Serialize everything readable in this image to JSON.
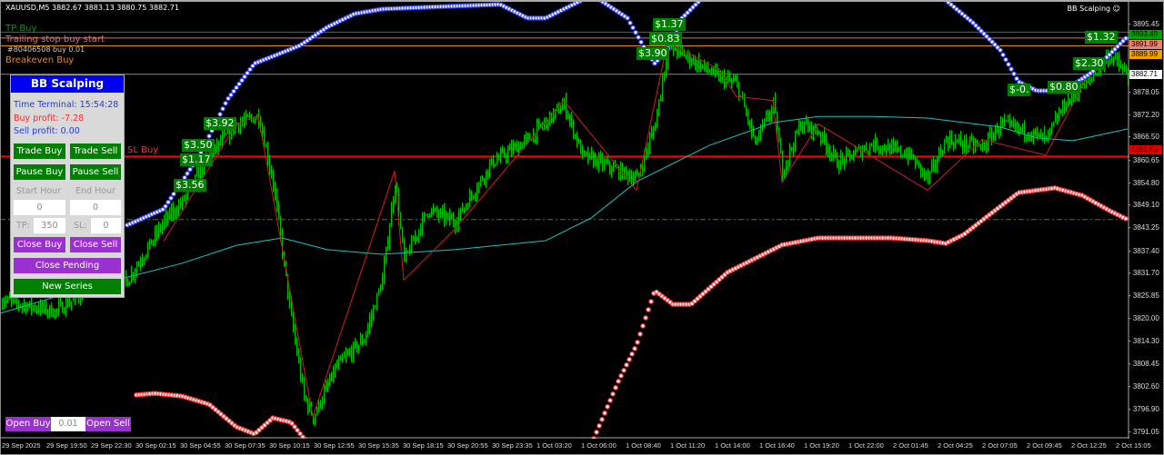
{
  "header": {
    "symbol_info": "XAUUSD,M5  3882.67 3883.13 3880.75 3882.71",
    "indicator_tag": "BB Scalping ☺"
  },
  "chart_labels": {
    "tp_buy": "TP Buy",
    "trailing": "Trailing stop buy start",
    "order": "#80406508 buy 0.01",
    "breakeven": "Breakeven Buy",
    "sl_buy": "SL Buy"
  },
  "colors": {
    "tp": "#00a000",
    "trailing": "#e07060",
    "breakeven": "#e08a20",
    "sl": "#ff0000",
    "candle": "#00c000",
    "ma": "#20c0c0",
    "upper_band": "#3040ff",
    "lower_band": "#ff3030",
    "panel_title": "#0000f0",
    "button_green": "#008000",
    "button_purple": "#9b30d0"
  },
  "panel": {
    "title": "BB Scalping",
    "time_label": "Time Terminal: 15:54:28",
    "buy_profit": "Buy profit: -7.28",
    "sell_profit": "Sell profit: 0.00",
    "trade_buy": "Trade Buy",
    "trade_sell": "Trade Sell",
    "pause_buy": "Pause Buy",
    "pause_sell": "Pause Sell",
    "start_hour_label": "Start Hour",
    "end_hour_label": "End Hour",
    "start_hour": "0",
    "end_hour": "0",
    "tp_label": "TP:",
    "tp_value": "350",
    "sl_label": "SL:",
    "sl_value": "0",
    "close_buy": "Close Buy",
    "close_sell": "Close Sell",
    "close_pending": "Close Pending",
    "new_series": "New Series"
  },
  "bottom": {
    "open_buy": "Open Buy",
    "lot": "0.01",
    "open_sell": "Open Sell"
  },
  "price_axis": [
    "3895.45",
    "3878.05",
    "3872.20",
    "3866.50",
    "3860.65",
    "3854.80",
    "3849.10",
    "3843.25",
    "3837.40",
    "3831.70",
    "3825.85",
    "3820.00",
    "3814.30",
    "3808.45",
    "3802.60",
    "3796.90",
    "3791.05"
  ],
  "price_tags": {
    "tp": "3893.49",
    "trailing": "3891.99",
    "breakeven": "3889.99",
    "current": "3882.71",
    "sl": "3861.65"
  },
  "time_axis": [
    "29 Sep 2025",
    "29 Sep 19:50",
    "29 Sep 22:30",
    "30 Sep 02:15",
    "30 Sep 04:55",
    "30 Sep 07:35",
    "30 Sep 10:15",
    "30 Sep 12:55",
    "30 Sep 15:35",
    "30 Sep 18:15",
    "30 Sep 20:55",
    "30 Sep 23:35",
    "1 Oct 03:20",
    "1 Oct 06:00",
    "1 Oct 08:40",
    "1 Oct 11:20",
    "1 Oct 14:00",
    "1 Oct 16:40",
    "1 Oct 19:20",
    "1 Oct 22:00",
    "2 Oct 01:45",
    "2 Oct 04:25",
    "2 Oct 07:05",
    "2 Oct 09:45",
    "2 Oct 12:25",
    "2 Oct 15:05"
  ],
  "profit_labels": [
    "$3.92",
    "$3.50",
    "$1.17",
    "$3.56",
    "$1.37",
    "$0.83",
    "$3.90",
    "$1.32",
    "$2.30",
    "$-0.",
    "$0.80"
  ],
  "series": {
    "close": [
      [
        0,
        3825
      ],
      [
        30,
        3822
      ],
      [
        50,
        3828
      ],
      [
        70,
        3830
      ],
      [
        90,
        3845
      ],
      [
        100,
        3850
      ],
      [
        115,
        3862
      ],
      [
        130,
        3870
      ],
      [
        142,
        3872
      ],
      [
        150,
        3855
      ],
      [
        160,
        3820
      ],
      [
        167,
        3800
      ],
      [
        172,
        3795
      ],
      [
        185,
        3808
      ],
      [
        200,
        3815
      ],
      [
        210,
        3830
      ],
      [
        217,
        3855
      ],
      [
        222,
        3835
      ],
      [
        235,
        3848
      ],
      [
        250,
        3845
      ],
      [
        270,
        3860
      ],
      [
        290,
        3866
      ],
      [
        310,
        3875
      ],
      [
        320,
        3862
      ],
      [
        350,
        3856
      ],
      [
        360,
        3870
      ],
      [
        367,
        3890
      ],
      [
        375,
        3888
      ],
      [
        395,
        3882
      ],
      [
        405,
        3880
      ],
      [
        415,
        3865
      ],
      [
        425,
        3875
      ],
      [
        430,
        3858
      ],
      [
        440,
        3870
      ],
      [
        450,
        3868
      ],
      [
        460,
        3860
      ],
      [
        480,
        3865
      ],
      [
        500,
        3862
      ],
      [
        510,
        3856
      ],
      [
        520,
        3866
      ],
      [
        540,
        3864
      ],
      [
        550,
        3870
      ],
      [
        565,
        3868
      ],
      [
        575,
        3866
      ],
      [
        585,
        3875
      ],
      [
        600,
        3882
      ],
      [
        610,
        3888
      ],
      [
        620,
        3882
      ]
    ],
    "upper_band": [
      [
        [
          70,
          3844.1
        ],
        [
          90,
          3848.2
        ],
        [
          110,
          3862.2
        ],
        [
          125,
          3876.2
        ],
        [
          140,
          3885.5
        ],
        [
          150,
          3887.3
        ],
        [
          165,
          3890.1
        ],
        [
          180,
          3894.8
        ],
        [
          195,
          3898.2
        ],
        [
          210,
          3899.4
        ],
        [
          235,
          3899.9
        ],
        [
          275,
          3900.6
        ],
        [
          290,
          3897.1
        ],
        [
          300,
          3897.1
        ],
        [
          310,
          3899.4
        ],
        [
          320,
          3901.7
        ]
      ],
      [
        [
          330,
          3901.7
        ],
        [
          345,
          3897.1
        ],
        [
          355,
          3888.9
        ],
        [
          360,
          3885.5
        ],
        [
          367,
          3888.9
        ],
        [
          375,
          3897.1
        ],
        [
          385,
          3901.7
        ]
      ],
      [
        [
          520,
          3901.7
        ],
        [
          535,
          3895.9
        ],
        [
          550,
          3888.9
        ],
        [
          560,
          3880.8
        ],
        [
          570,
          3878.5
        ],
        [
          585,
          3878.5
        ],
        [
          600,
          3883.1
        ],
        [
          620,
          3892.4
        ]
      ]
    ],
    "lower_band": [
      [
        [
          75,
          3800.6
        ],
        [
          85,
          3801.0
        ],
        [
          100,
          3800.3
        ],
        [
          115,
          3798.2
        ],
        [
          130,
          3792.4
        ],
        [
          140,
          3790.6
        ],
        [
          150,
          3794.7
        ],
        [
          160,
          3793.6
        ],
        [
          170,
          3787.8
        ]
      ],
      [
        [
          325,
          3787.8
        ],
        [
          340,
          3804.1
        ],
        [
          350,
          3813.4
        ],
        [
          360,
          3827.3
        ],
        [
          370,
          3823.8
        ],
        [
          380,
          3823.8
        ],
        [
          400,
          3832.0
        ],
        [
          415,
          3835.5
        ],
        [
          430,
          3839.0
        ],
        [
          450,
          3840.8
        ],
        [
          470,
          3840.8
        ],
        [
          490,
          3840.8
        ],
        [
          510,
          3840.1
        ],
        [
          520,
          3839.4
        ],
        [
          530,
          3841.7
        ],
        [
          545,
          3847.1
        ],
        [
          560,
          3852.4
        ],
        [
          580,
          3853.6
        ],
        [
          595,
          3851.7
        ],
        [
          610,
          3847.8
        ],
        [
          620,
          3845.5
        ]
      ]
    ],
    "ma": [
      [
        0,
        3821.5
      ],
      [
        50,
        3828.4
      ],
      [
        100,
        3834.3
      ],
      [
        130,
        3838.9
      ],
      [
        155,
        3840.8
      ],
      [
        180,
        3837.8
      ],
      [
        210,
        3836.6
      ],
      [
        250,
        3837.8
      ],
      [
        300,
        3840.1
      ],
      [
        325,
        3845.9
      ],
      [
        350,
        3855.2
      ],
      [
        390,
        3864.5
      ],
      [
        425,
        3870.3
      ],
      [
        450,
        3871.9
      ],
      [
        480,
        3871.9
      ],
      [
        510,
        3871.5
      ],
      [
        550,
        3869.2
      ],
      [
        570,
        3866.4
      ],
      [
        590,
        3865.7
      ],
      [
        620,
        3868.7
      ]
    ],
    "zigzag": [
      [
        90,
        3840
      ],
      [
        130,
        3870
      ],
      [
        142,
        3872
      ],
      [
        172,
        3795
      ],
      [
        217,
        3858
      ],
      [
        222,
        3830
      ],
      [
        250,
        3843
      ],
      [
        310,
        3876
      ],
      [
        350,
        3853
      ],
      [
        367,
        3891
      ],
      [
        395,
        3884
      ],
      [
        405,
        3877
      ],
      [
        425,
        3876
      ],
      [
        430,
        3855
      ],
      [
        450,
        3870
      ],
      [
        510,
        3853
      ],
      [
        540,
        3866
      ],
      [
        575,
        3862
      ],
      [
        600,
        3884
      ],
      [
        615,
        3890
      ]
    ]
  }
}
